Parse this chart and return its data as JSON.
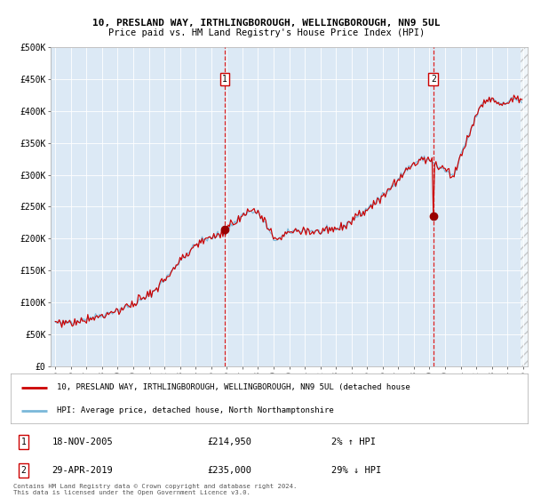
{
  "title_line1": "10, PRESLAND WAY, IRTHLINGBOROUGH, WELLINGBOROUGH, NN9 5UL",
  "title_line2": "Price paid vs. HM Land Registry's House Price Index (HPI)",
  "sale1_price": 214950,
  "sale1_label": "1",
  "sale1_date_str": "18-NOV-2005",
  "sale1_hpi_pct": "2% ↑ HPI",
  "sale2_price": 235000,
  "sale2_label": "2",
  "sale2_date_str": "29-APR-2019",
  "sale2_hpi_pct": "29% ↓ HPI",
  "legend_line1": "10, PRESLAND WAY, IRTHLINGBOROUGH, WELLINGBOROUGH, NN9 5UL (detached house",
  "legend_line2": "HPI: Average price, detached house, North Northamptonshire",
  "footer": "Contains HM Land Registry data © Crown copyright and database right 2024.\nThis data is licensed under the Open Government Licence v3.0.",
  "hpi_color": "#7ab8d9",
  "price_color": "#cc0000",
  "marker_color": "#990000",
  "bg_color": "#dce9f5",
  "ylim": [
    0,
    500000
  ],
  "yticks": [
    0,
    50000,
    100000,
    150000,
    200000,
    250000,
    300000,
    350000,
    400000,
    450000,
    500000
  ],
  "ytick_labels": [
    "£0",
    "£50K",
    "£100K",
    "£150K",
    "£200K",
    "£250K",
    "£300K",
    "£350K",
    "£400K",
    "£450K",
    "£500K"
  ],
  "sale1_x": 2005.875,
  "sale2_x": 2019.25,
  "xmin": 1994.7,
  "xmax": 2025.3
}
